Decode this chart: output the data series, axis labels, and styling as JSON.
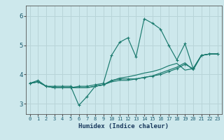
{
  "xlabel": "Humidex (Indice chaleur)",
  "xlim": [
    -0.5,
    23.5
  ],
  "ylim": [
    2.65,
    6.35
  ],
  "yticks": [
    3,
    4,
    5,
    6
  ],
  "xticks": [
    0,
    1,
    2,
    3,
    4,
    5,
    6,
    7,
    8,
    9,
    10,
    11,
    12,
    13,
    14,
    15,
    16,
    17,
    18,
    19,
    20,
    21,
    22,
    23
  ],
  "bg_color": "#cde8ec",
  "grid_color": "#b8d4d8",
  "line_color": "#1a7a6e",
  "series": [
    {
      "x": [
        0,
        1,
        2,
        3,
        4,
        5,
        6,
        7,
        8,
        9,
        10,
        11,
        12,
        13,
        14,
        15,
        16,
        17,
        18,
        19,
        20,
        21,
        22,
        23
      ],
      "y": [
        3.7,
        3.8,
        3.6,
        3.6,
        3.6,
        3.6,
        2.95,
        3.25,
        3.6,
        3.65,
        3.8,
        3.85,
        3.85,
        3.85,
        3.9,
        3.95,
        4.0,
        4.1,
        4.2,
        4.35,
        4.2,
        4.65,
        4.7,
        4.7
      ],
      "marker": true
    },
    {
      "x": [
        0,
        1,
        2,
        3,
        4,
        5,
        6,
        7,
        8,
        9,
        10,
        11,
        12,
        13,
        14,
        15,
        16,
        17,
        18,
        19,
        20,
        21,
        22,
        23
      ],
      "y": [
        3.7,
        3.75,
        3.6,
        3.55,
        3.55,
        3.55,
        3.6,
        3.6,
        3.65,
        3.7,
        4.65,
        5.1,
        5.25,
        4.6,
        5.9,
        5.75,
        5.55,
        5.0,
        4.5,
        5.05,
        4.2,
        4.65,
        4.7,
        4.7
      ],
      "marker": true
    },
    {
      "x": [
        0,
        1,
        2,
        3,
        4,
        5,
        6,
        7,
        8,
        9,
        10,
        11,
        12,
        13,
        14,
        15,
        16,
        17,
        18,
        19,
        20,
        21,
        22,
        23
      ],
      "y": [
        3.7,
        3.75,
        3.6,
        3.55,
        3.55,
        3.55,
        3.55,
        3.55,
        3.6,
        3.65,
        3.75,
        3.8,
        3.8,
        3.85,
        3.9,
        3.95,
        4.05,
        4.15,
        4.25,
        4.4,
        4.15,
        4.65,
        4.7,
        4.7
      ],
      "marker": false
    },
    {
      "x": [
        0,
        1,
        2,
        3,
        4,
        5,
        6,
        7,
        8,
        9,
        10,
        11,
        12,
        13,
        14,
        15,
        16,
        17,
        18,
        19,
        20,
        21,
        22,
        23
      ],
      "y": [
        3.7,
        3.75,
        3.6,
        3.55,
        3.55,
        3.55,
        3.55,
        3.55,
        3.6,
        3.65,
        3.78,
        3.88,
        3.92,
        3.98,
        4.05,
        4.1,
        4.18,
        4.3,
        4.38,
        4.15,
        4.2,
        4.65,
        4.7,
        4.7
      ],
      "marker": false
    }
  ]
}
